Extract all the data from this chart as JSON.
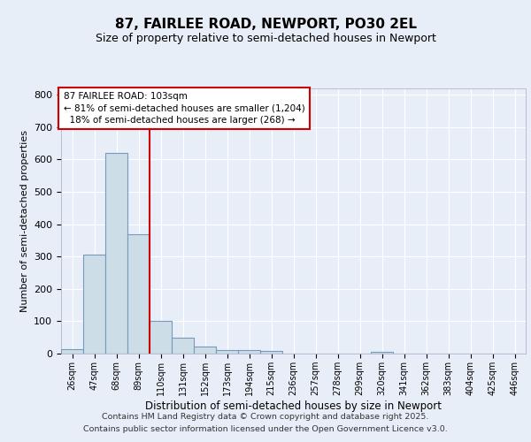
{
  "title": "87, FAIRLEE ROAD, NEWPORT, PO30 2EL",
  "subtitle": "Size of property relative to semi-detached houses in Newport",
  "xlabel": "Distribution of semi-detached houses by size in Newport",
  "ylabel": "Number of semi-detached properties",
  "categories": [
    "26sqm",
    "47sqm",
    "68sqm",
    "89sqm",
    "110sqm",
    "131sqm",
    "152sqm",
    "173sqm",
    "194sqm",
    "215sqm",
    "236sqm",
    "257sqm",
    "278sqm",
    "299sqm",
    "320sqm",
    "341sqm",
    "362sqm",
    "383sqm",
    "404sqm",
    "425sqm",
    "446sqm"
  ],
  "values": [
    15,
    305,
    620,
    370,
    100,
    50,
    22,
    10,
    10,
    8,
    0,
    0,
    0,
    0,
    5,
    0,
    0,
    0,
    0,
    0,
    0
  ],
  "bar_color": "#ccdde8",
  "bar_edge_color": "#7799bb",
  "vline_x_index": 4,
  "vline_color": "#cc0000",
  "annotation_line1": "87 FAIRLEE ROAD: 103sqm",
  "annotation_line2": "← 81% of semi-detached houses are smaller (1,204)",
  "annotation_line3": "  18% of semi-detached houses are larger (268) →",
  "annotation_box_color": "#ffffff",
  "annotation_box_edge_color": "#cc0000",
  "background_color": "#e8eef8",
  "grid_color": "#ffffff",
  "footer_line1": "Contains HM Land Registry data © Crown copyright and database right 2025.",
  "footer_line2": "Contains public sector information licensed under the Open Government Licence v3.0.",
  "ylim": [
    0,
    820
  ],
  "yticks": [
    0,
    100,
    200,
    300,
    400,
    500,
    600,
    700,
    800
  ]
}
